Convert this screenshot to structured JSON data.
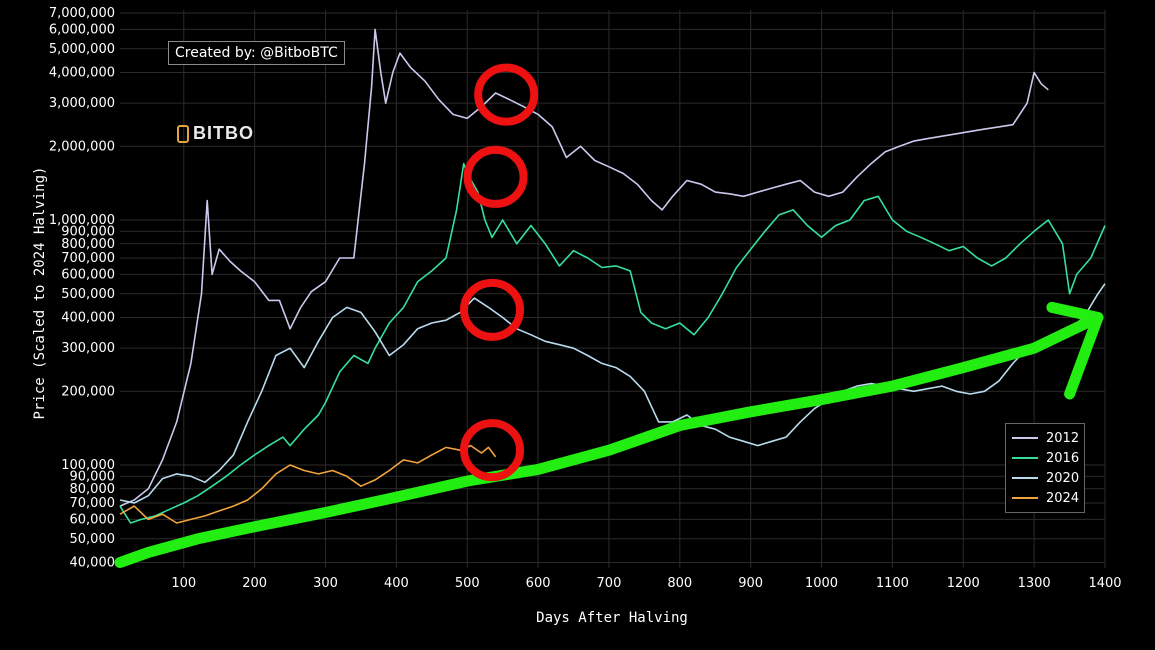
{
  "credit": "Created by: @BitboBTC",
  "logo_text": "BITBO",
  "chart_data": {
    "type": "line",
    "xlabel": "Days After Halving",
    "ylabel": "Price (Scaled to 2024 Halving)",
    "xlim": [
      10,
      1400
    ],
    "ylim": [
      38000,
      7200000
    ],
    "y_scale": "log",
    "grid": true,
    "legend_position": "bottom-right",
    "x_ticks": [
      100,
      200,
      300,
      400,
      500,
      600,
      700,
      800,
      900,
      1000,
      1100,
      1200,
      1300,
      1400
    ],
    "y_ticks": [
      {
        "value": 40000,
        "label": "40,000"
      },
      {
        "value": 50000,
        "label": "50,000"
      },
      {
        "value": 60000,
        "label": "60,000"
      },
      {
        "value": 70000,
        "label": "70,000"
      },
      {
        "value": 80000,
        "label": "80,000"
      },
      {
        "value": 90000,
        "label": "90,000"
      },
      {
        "value": 100000,
        "label": "100,000"
      },
      {
        "value": 200000,
        "label": "200,000"
      },
      {
        "value": 300000,
        "label": "300,000"
      },
      {
        "value": 400000,
        "label": "400,000"
      },
      {
        "value": 500000,
        "label": "500,000"
      },
      {
        "value": 600000,
        "label": "600,000"
      },
      {
        "value": 700000,
        "label": "700,000"
      },
      {
        "value": 800000,
        "label": "800,000"
      },
      {
        "value": 900000,
        "label": "900,000"
      },
      {
        "value": 1000000,
        "label": "1,000,000"
      },
      {
        "value": 2000000,
        "label": "2,000,000"
      },
      {
        "value": 3000000,
        "label": "3,000,000"
      },
      {
        "value": 4000000,
        "label": "4,000,000"
      },
      {
        "value": 5000000,
        "label": "5,000,000"
      },
      {
        "value": 6000000,
        "label": "6,000,000"
      },
      {
        "value": 7000000,
        "label": "7,000,000"
      }
    ],
    "series": [
      {
        "name": "2012",
        "color": "#c9c9ee",
        "points": [
          [
            10,
            68000
          ],
          [
            30,
            72000
          ],
          [
            50,
            80000
          ],
          [
            70,
            105000
          ],
          [
            90,
            150000
          ],
          [
            110,
            260000
          ],
          [
            125,
            500000
          ],
          [
            133,
            1200000
          ],
          [
            140,
            600000
          ],
          [
            150,
            760000
          ],
          [
            165,
            680000
          ],
          [
            180,
            620000
          ],
          [
            200,
            560000
          ],
          [
            220,
            470000
          ],
          [
            235,
            470000
          ],
          [
            250,
            360000
          ],
          [
            265,
            440000
          ],
          [
            280,
            510000
          ],
          [
            300,
            560000
          ],
          [
            320,
            700000
          ],
          [
            340,
            700000
          ],
          [
            355,
            1700000
          ],
          [
            365,
            3500000
          ],
          [
            370,
            6000000
          ],
          [
            378,
            4000000
          ],
          [
            385,
            3000000
          ],
          [
            395,
            4000000
          ],
          [
            405,
            4800000
          ],
          [
            420,
            4200000
          ],
          [
            440,
            3700000
          ],
          [
            460,
            3100000
          ],
          [
            480,
            2700000
          ],
          [
            500,
            2600000
          ],
          [
            520,
            2900000
          ],
          [
            540,
            3300000
          ],
          [
            560,
            3100000
          ],
          [
            580,
            2900000
          ],
          [
            600,
            2700000
          ],
          [
            620,
            2400000
          ],
          [
            640,
            1800000
          ],
          [
            660,
            2000000
          ],
          [
            680,
            1750000
          ],
          [
            700,
            1650000
          ],
          [
            720,
            1550000
          ],
          [
            740,
            1400000
          ],
          [
            760,
            1200000
          ],
          [
            775,
            1100000
          ],
          [
            790,
            1250000
          ],
          [
            810,
            1450000
          ],
          [
            830,
            1400000
          ],
          [
            850,
            1300000
          ],
          [
            870,
            1280000
          ],
          [
            890,
            1250000
          ],
          [
            910,
            1300000
          ],
          [
            930,
            1350000
          ],
          [
            950,
            1400000
          ],
          [
            970,
            1450000
          ],
          [
            990,
            1300000
          ],
          [
            1010,
            1250000
          ],
          [
            1030,
            1300000
          ],
          [
            1050,
            1500000
          ],
          [
            1070,
            1700000
          ],
          [
            1090,
            1900000
          ],
          [
            1110,
            2000000
          ],
          [
            1130,
            2100000
          ],
          [
            1150,
            2150000
          ],
          [
            1170,
            2200000
          ],
          [
            1190,
            2250000
          ],
          [
            1210,
            2300000
          ],
          [
            1230,
            2350000
          ],
          [
            1250,
            2400000
          ],
          [
            1270,
            2450000
          ],
          [
            1290,
            3000000
          ],
          [
            1300,
            4000000
          ],
          [
            1310,
            3600000
          ],
          [
            1320,
            3400000
          ]
        ]
      },
      {
        "name": "2016",
        "color": "#36e09a",
        "points": [
          [
            10,
            68000
          ],
          [
            25,
            58000
          ],
          [
            40,
            60000
          ],
          [
            60,
            62000
          ],
          [
            80,
            66000
          ],
          [
            100,
            70000
          ],
          [
            120,
            75000
          ],
          [
            140,
            82000
          ],
          [
            160,
            90000
          ],
          [
            180,
            100000
          ],
          [
            200,
            110000
          ],
          [
            220,
            120000
          ],
          [
            240,
            130000
          ],
          [
            250,
            120000
          ],
          [
            270,
            140000
          ],
          [
            290,
            160000
          ],
          [
            300,
            180000
          ],
          [
            320,
            240000
          ],
          [
            340,
            280000
          ],
          [
            360,
            260000
          ],
          [
            370,
            300000
          ],
          [
            390,
            380000
          ],
          [
            410,
            440000
          ],
          [
            430,
            560000
          ],
          [
            450,
            620000
          ],
          [
            470,
            700000
          ],
          [
            485,
            1100000
          ],
          [
            495,
            1700000
          ],
          [
            500,
            1550000
          ],
          [
            515,
            1300000
          ],
          [
            525,
            1000000
          ],
          [
            535,
            850000
          ],
          [
            550,
            1000000
          ],
          [
            570,
            800000
          ],
          [
            590,
            950000
          ],
          [
            610,
            800000
          ],
          [
            630,
            650000
          ],
          [
            650,
            750000
          ],
          [
            670,
            700000
          ],
          [
            690,
            640000
          ],
          [
            710,
            650000
          ],
          [
            730,
            620000
          ],
          [
            745,
            420000
          ],
          [
            760,
            380000
          ],
          [
            780,
            360000
          ],
          [
            800,
            380000
          ],
          [
            820,
            340000
          ],
          [
            840,
            400000
          ],
          [
            860,
            500000
          ],
          [
            880,
            640000
          ],
          [
            900,
            760000
          ],
          [
            920,
            900000
          ],
          [
            940,
            1050000
          ],
          [
            960,
            1100000
          ],
          [
            980,
            950000
          ],
          [
            1000,
            850000
          ],
          [
            1020,
            950000
          ],
          [
            1040,
            1000000
          ],
          [
            1060,
            1200000
          ],
          [
            1080,
            1250000
          ],
          [
            1100,
            1000000
          ],
          [
            1120,
            900000
          ],
          [
            1140,
            850000
          ],
          [
            1160,
            800000
          ],
          [
            1180,
            750000
          ],
          [
            1200,
            780000
          ],
          [
            1220,
            700000
          ],
          [
            1240,
            650000
          ],
          [
            1260,
            700000
          ],
          [
            1280,
            800000
          ],
          [
            1300,
            900000
          ],
          [
            1320,
            1000000
          ],
          [
            1340,
            800000
          ],
          [
            1350,
            500000
          ],
          [
            1360,
            600000
          ],
          [
            1380,
            700000
          ],
          [
            1400,
            950000
          ]
        ]
      },
      {
        "name": "2020",
        "color": "#b8dced",
        "points": [
          [
            10,
            72000
          ],
          [
            30,
            70000
          ],
          [
            50,
            75000
          ],
          [
            70,
            88000
          ],
          [
            90,
            92000
          ],
          [
            110,
            90000
          ],
          [
            130,
            85000
          ],
          [
            150,
            95000
          ],
          [
            170,
            110000
          ],
          [
            190,
            150000
          ],
          [
            210,
            200000
          ],
          [
            230,
            280000
          ],
          [
            250,
            300000
          ],
          [
            270,
            250000
          ],
          [
            290,
            320000
          ],
          [
            310,
            400000
          ],
          [
            330,
            440000
          ],
          [
            350,
            420000
          ],
          [
            370,
            350000
          ],
          [
            390,
            280000
          ],
          [
            410,
            310000
          ],
          [
            430,
            360000
          ],
          [
            450,
            380000
          ],
          [
            470,
            390000
          ],
          [
            490,
            420000
          ],
          [
            510,
            480000
          ],
          [
            530,
            440000
          ],
          [
            550,
            400000
          ],
          [
            570,
            360000
          ],
          [
            590,
            340000
          ],
          [
            610,
            320000
          ],
          [
            630,
            310000
          ],
          [
            650,
            300000
          ],
          [
            670,
            280000
          ],
          [
            690,
            260000
          ],
          [
            710,
            250000
          ],
          [
            730,
            230000
          ],
          [
            750,
            200000
          ],
          [
            770,
            150000
          ],
          [
            790,
            150000
          ],
          [
            810,
            160000
          ],
          [
            830,
            145000
          ],
          [
            850,
            140000
          ],
          [
            870,
            130000
          ],
          [
            890,
            125000
          ],
          [
            910,
            120000
          ],
          [
            930,
            125000
          ],
          [
            950,
            130000
          ],
          [
            970,
            150000
          ],
          [
            990,
            170000
          ],
          [
            1010,
            185000
          ],
          [
            1030,
            200000
          ],
          [
            1050,
            210000
          ],
          [
            1070,
            215000
          ],
          [
            1090,
            210000
          ],
          [
            1110,
            205000
          ],
          [
            1130,
            200000
          ],
          [
            1150,
            205000
          ],
          [
            1170,
            210000
          ],
          [
            1190,
            200000
          ],
          [
            1210,
            195000
          ],
          [
            1230,
            200000
          ],
          [
            1250,
            220000
          ],
          [
            1270,
            260000
          ],
          [
            1290,
            300000
          ],
          [
            1310,
            320000
          ],
          [
            1330,
            340000
          ],
          [
            1350,
            360000
          ],
          [
            1370,
            400000
          ],
          [
            1390,
            500000
          ],
          [
            1400,
            550000
          ]
        ]
      },
      {
        "name": "2024",
        "color": "#f2a33c",
        "points": [
          [
            10,
            63000
          ],
          [
            30,
            68000
          ],
          [
            50,
            60000
          ],
          [
            70,
            63000
          ],
          [
            90,
            58000
          ],
          [
            110,
            60000
          ],
          [
            130,
            62000
          ],
          [
            150,
            65000
          ],
          [
            170,
            68000
          ],
          [
            190,
            72000
          ],
          [
            210,
            80000
          ],
          [
            230,
            92000
          ],
          [
            250,
            100000
          ],
          [
            270,
            95000
          ],
          [
            290,
            92000
          ],
          [
            310,
            95000
          ],
          [
            330,
            90000
          ],
          [
            350,
            82000
          ],
          [
            370,
            87000
          ],
          [
            390,
            95000
          ],
          [
            410,
            105000
          ],
          [
            430,
            102000
          ],
          [
            450,
            110000
          ],
          [
            470,
            118000
          ],
          [
            490,
            115000
          ],
          [
            505,
            120000
          ],
          [
            520,
            112000
          ],
          [
            530,
            118000
          ],
          [
            540,
            108000
          ]
        ]
      }
    ]
  },
  "annotations": {
    "trend_arrow_color": "#22ee11",
    "circle_color": "#ee1111",
    "circles": [
      [
        555,
        3250000
      ],
      [
        540,
        1500000
      ],
      [
        535,
        430000
      ],
      [
        535,
        115000
      ]
    ],
    "trend_line": [
      [
        10,
        40000
      ],
      [
        50,
        44000
      ],
      [
        120,
        50000
      ],
      [
        200,
        56000
      ],
      [
        300,
        64000
      ],
      [
        400,
        74000
      ],
      [
        500,
        86000
      ],
      [
        600,
        96000
      ],
      [
        700,
        115000
      ],
      [
        800,
        145000
      ],
      [
        900,
        165000
      ],
      [
        1000,
        185000
      ],
      [
        1100,
        210000
      ],
      [
        1200,
        250000
      ],
      [
        1300,
        300000
      ],
      [
        1390,
        400000
      ]
    ],
    "arrow_head": [
      [
        1325,
        440000
      ],
      [
        1390,
        400000
      ],
      [
        1350,
        195000
      ]
    ]
  }
}
